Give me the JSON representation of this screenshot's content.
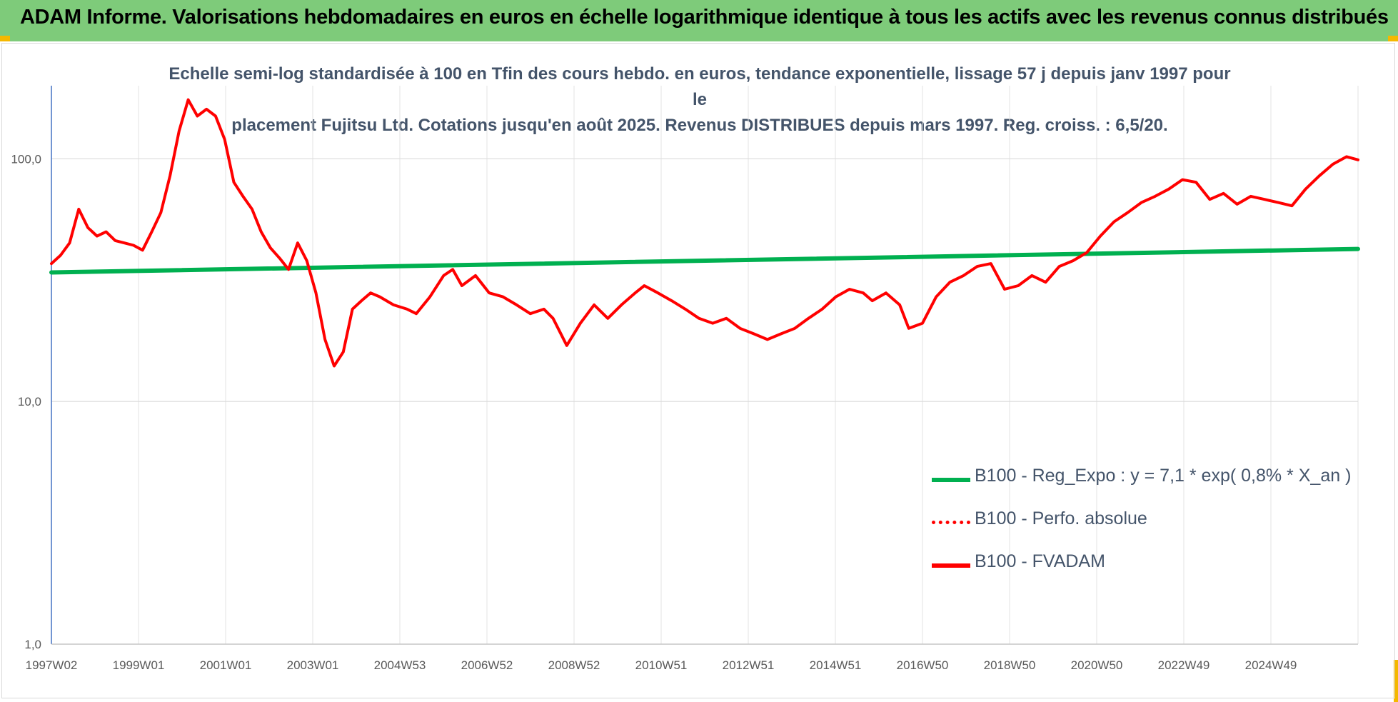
{
  "banner": {
    "title": "ADAM Informe. Valorisations hebdomadaires en euros en échelle logarithmique identique à tous les actifs avec les revenus connus distribués"
  },
  "colors": {
    "banner": "#7ecb7a",
    "regression": "#00b050",
    "fvadam": "#ff0000",
    "perfo": "#ff0000",
    "text": "#44546a"
  },
  "chart_data": {
    "type": "line",
    "title": "Echelle semi-log standardisée à 100 en Tfin des cours hebdo. en euros, tendance exponentielle, lissage 57 j depuis janv 1997 pour le placement Fujitsu Ltd. Cotations jusqu'en août 2025. Revenus DISTRIBUES depuis mars 1997. Reg. croiss. : 6,5/20.",
    "title_lines": [
      "Echelle semi-log standardisée à 100 en Tfin des cours hebdo. en euros, tendance exponentielle, lissage 57 j depuis janv 1997 pour le",
      "placement Fujitsu Ltd. Cotations jusqu'en août 2025. Revenus DISTRIBUES depuis mars 1997. Reg. croiss. : 6,5/20."
    ],
    "y_scale": "log",
    "ylim": [
      1,
      200
    ],
    "y_ticks": [
      1,
      10,
      100
    ],
    "y_tick_labels": [
      "1,0",
      "10,0",
      "100,0"
    ],
    "x_tick_labels": [
      "1997W02",
      "1999W01",
      "2001W01",
      "2003W01",
      "2004W53",
      "2006W52",
      "2008W52",
      "2010W51",
      "2012W51",
      "2014W51",
      "2016W50",
      "2018W50",
      "2020W50",
      "2022W49",
      "2024W49"
    ],
    "xlim": [
      1997.0,
      2025.65
    ],
    "grid": true,
    "legend_position": "bottom-right",
    "legend": [
      "B100 - Reg_Expo : y = 7,1 * exp( 0,8% *  X_an )",
      "B100 - Perfo. absolue",
      "B100 - FVADAM"
    ],
    "series": [
      {
        "name": "B100 - Reg_Expo : y = 7,1 * exp( 0,8% *  X_an )",
        "style": "solid-green",
        "x": [
          1997.0,
          2025.65
        ],
        "y": [
          34,
          42.5
        ]
      },
      {
        "name": "B100 - Perfo. absolue",
        "style": "dotted-red",
        "x": [],
        "y": []
      },
      {
        "name": "B100 - FVADAM",
        "style": "solid-red",
        "x": [
          1997.0,
          1997.2,
          1997.4,
          1997.6,
          1997.8,
          1998.0,
          1998.2,
          1998.4,
          1998.6,
          1998.8,
          1999.0,
          1999.2,
          1999.4,
          1999.6,
          1999.8,
          2000.0,
          2000.2,
          2000.4,
          2000.6,
          2000.8,
          2001.0,
          2001.2,
          2001.4,
          2001.6,
          2001.8,
          2002.0,
          2002.2,
          2002.4,
          2002.6,
          2002.8,
          2003.0,
          2003.2,
          2003.4,
          2003.6,
          2003.8,
          2004.0,
          2004.2,
          2004.5,
          2004.8,
          2005.0,
          2005.3,
          2005.6,
          2005.8,
          2006.0,
          2006.3,
          2006.6,
          2006.9,
          2007.2,
          2007.5,
          2007.8,
          2008.0,
          2008.3,
          2008.6,
          2008.9,
          2009.2,
          2009.5,
          2009.8,
          2010.0,
          2010.3,
          2010.6,
          2010.9,
          2011.2,
          2011.5,
          2011.8,
          2012.1,
          2012.4,
          2012.7,
          2013.0,
          2013.3,
          2013.6,
          2013.9,
          2014.2,
          2014.5,
          2014.8,
          2015.0,
          2015.3,
          2015.6,
          2015.8,
          2016.1,
          2016.4,
          2016.7,
          2017.0,
          2017.3,
          2017.6,
          2017.9,
          2018.2,
          2018.5,
          2018.8,
          2019.1,
          2019.4,
          2019.7,
          2020.0,
          2020.3,
          2020.6,
          2020.9,
          2021.2,
          2021.5,
          2021.8,
          2022.1,
          2022.4,
          2022.7,
          2023.0,
          2023.3,
          2023.6,
          2023.9,
          2024.2,
          2024.5,
          2024.8,
          2025.1,
          2025.4,
          2025.65
        ],
        "y": [
          37,
          40,
          45,
          62,
          52,
          48,
          50,
          46,
          45,
          44,
          42,
          50,
          60,
          85,
          130,
          175,
          150,
          160,
          150,
          120,
          80,
          70,
          62,
          50,
          43,
          39,
          35,
          45,
          38,
          28,
          18,
          14,
          16,
          24,
          26,
          28,
          27,
          25,
          24,
          23,
          27,
          33,
          35,
          30,
          33,
          28,
          27,
          25,
          23,
          24,
          22,
          17,
          21,
          25,
          22,
          25,
          28,
          30,
          28,
          26,
          24,
          22,
          21,
          22,
          20,
          19,
          18,
          19,
          20,
          22,
          24,
          27,
          29,
          28,
          26,
          28,
          25,
          20,
          21,
          27,
          31,
          33,
          36,
          37,
          29,
          30,
          33,
          31,
          36,
          38,
          41,
          48,
          55,
          60,
          66,
          70,
          75,
          82,
          80,
          68,
          72,
          65,
          70,
          68,
          66,
          64,
          75,
          85,
          95,
          102,
          99
        ]
      }
    ]
  }
}
